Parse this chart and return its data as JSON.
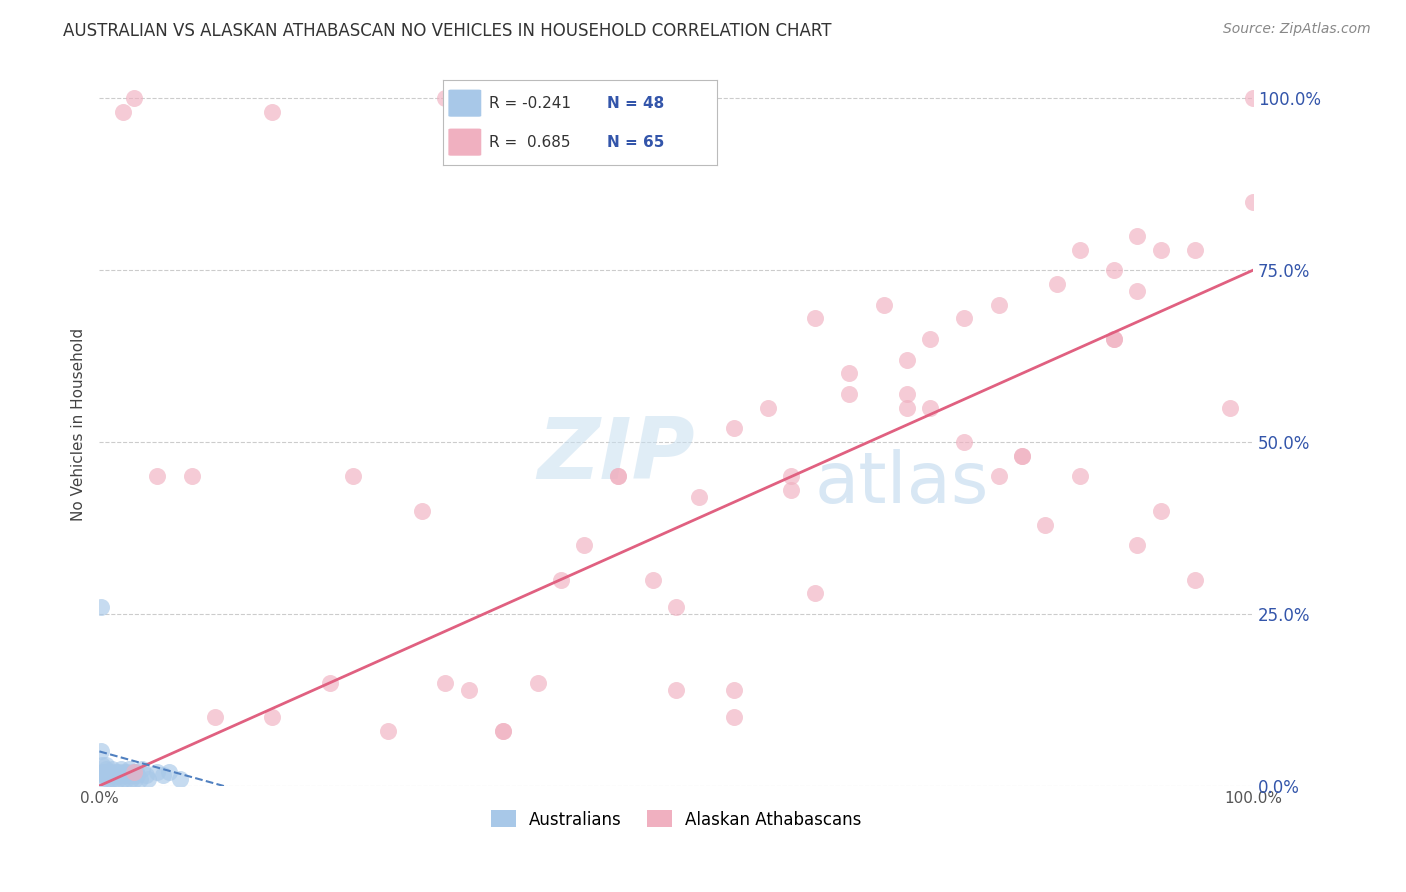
{
  "title": "AUSTRALIAN VS ALASKAN ATHABASCAN NO VEHICLES IN HOUSEHOLD CORRELATION CHART",
  "source": "Source: ZipAtlas.com",
  "ylabel": "No Vehicles in Household",
  "xlim": [
    0,
    100
  ],
  "ylim": [
    0,
    105
  ],
  "ytick_labels": [
    "0.0%",
    "25.0%",
    "50.0%",
    "75.0%",
    "100.0%"
  ],
  "ytick_values": [
    0,
    25,
    50,
    75,
    100
  ],
  "grid_color": "#cccccc",
  "background_color": "#ffffff",
  "blue_color": "#a8c8e8",
  "pink_color": "#f0b0c0",
  "blue_line_color": "#5080c0",
  "blue_line_dash": "--",
  "pink_line_color": "#e06080",
  "blue_scatter_x": [
    0.2,
    0.3,
    0.4,
    0.5,
    0.6,
    0.7,
    0.8,
    0.9,
    1.0,
    1.1,
    1.2,
    1.3,
    1.4,
    1.5,
    1.6,
    1.7,
    1.8,
    1.9,
    2.0,
    2.1,
    2.2,
    2.3,
    2.4,
    2.5,
    2.6,
    2.7,
    2.8,
    2.9,
    3.0,
    3.1,
    3.2,
    3.3,
    3.5,
    3.7,
    4.0,
    4.2,
    5.0,
    5.5,
    6.0,
    7.0,
    0.1,
    0.15,
    0.25,
    0.35,
    0.45,
    0.55,
    0.65,
    0.75
  ],
  "blue_scatter_y": [
    1.5,
    1.0,
    2.0,
    1.5,
    2.5,
    1.0,
    1.5,
    2.0,
    1.0,
    2.5,
    1.5,
    1.0,
    2.0,
    1.5,
    1.0,
    2.0,
    1.5,
    2.5,
    1.0,
    2.0,
    1.5,
    1.0,
    2.0,
    1.5,
    2.5,
    1.0,
    1.5,
    2.0,
    1.5,
    1.0,
    2.0,
    1.5,
    1.0,
    2.5,
    1.5,
    1.0,
    2.0,
    1.5,
    2.0,
    1.0,
    26.0,
    5.0,
    3.0,
    2.0,
    1.5,
    3.0,
    2.0,
    1.5
  ],
  "pink_scatter_x": [
    3,
    8,
    15,
    22,
    28,
    32,
    35,
    38,
    42,
    45,
    48,
    50,
    52,
    55,
    55,
    58,
    60,
    62,
    62,
    65,
    65,
    68,
    70,
    70,
    72,
    75,
    75,
    78,
    78,
    80,
    82,
    83,
    85,
    85,
    88,
    88,
    90,
    90,
    92,
    92,
    95,
    95,
    98,
    100,
    100,
    20,
    25,
    30,
    35,
    40,
    10,
    5,
    2,
    3,
    45,
    50,
    60,
    70,
    80,
    90,
    15,
    30,
    55,
    72,
    88
  ],
  "pink_scatter_y": [
    2,
    45,
    10,
    45,
    40,
    14,
    8,
    15,
    35,
    45,
    30,
    26,
    42,
    52,
    14,
    55,
    43,
    28,
    68,
    57,
    60,
    70,
    55,
    62,
    65,
    68,
    50,
    70,
    45,
    48,
    38,
    73,
    45,
    78,
    65,
    75,
    72,
    80,
    40,
    78,
    30,
    78,
    55,
    85,
    100,
    15,
    8,
    15,
    8,
    30,
    10,
    45,
    98,
    100,
    45,
    14,
    45,
    57,
    48,
    35,
    98,
    100,
    10,
    55,
    65
  ],
  "title_fontsize": 12,
  "axis_label_fontsize": 11,
  "tick_fontsize": 11,
  "source_fontsize": 10,
  "legend_fontsize": 12
}
